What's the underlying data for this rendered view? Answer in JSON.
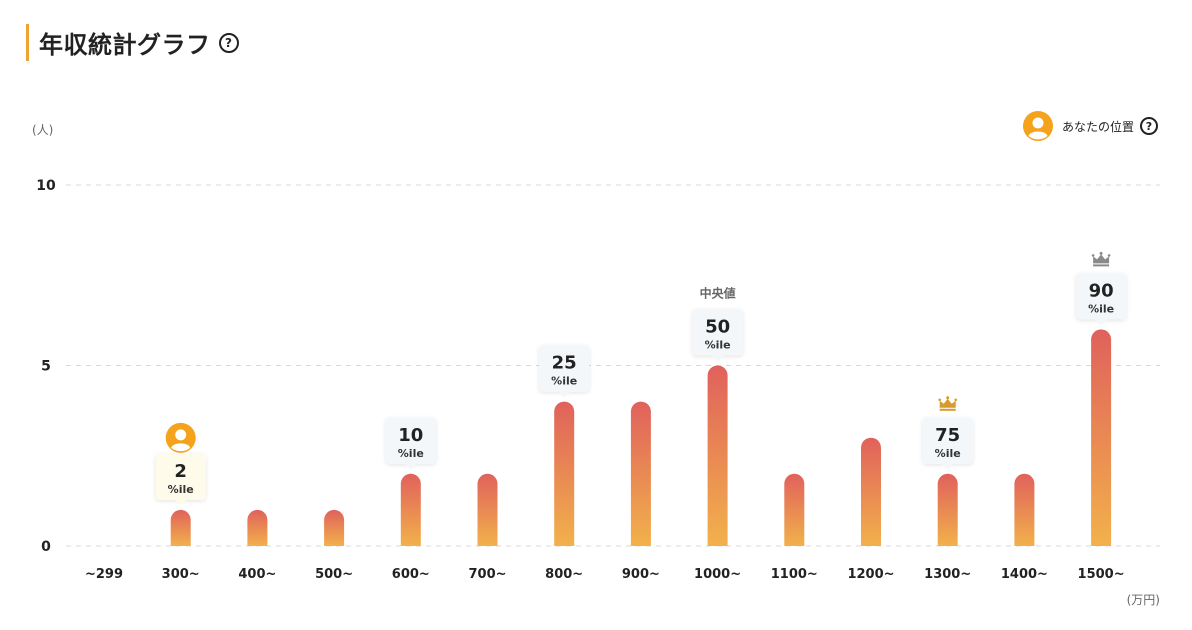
{
  "header": {
    "title": "年収統計グラフ",
    "help_icon": "question-circle-icon"
  },
  "legend": {
    "label": "あなたの位置",
    "icon": "user-avatar-icon",
    "help_icon": "question-circle-icon"
  },
  "colors": {
    "accent": "#f0a233",
    "bar_top": "#e0615c",
    "bar_bottom": "#f2b14b",
    "avatar": "#f5a21d",
    "crown_gold": "#d89a2b",
    "crown_gray": "#8a8a8a"
  },
  "chart_data": {
    "type": "bar",
    "ylabel": "(人)",
    "xunit": "(万円)",
    "ylim": [
      0,
      10
    ],
    "yticks": [
      0,
      5,
      10
    ],
    "grid": true,
    "categories": [
      "~299",
      "300~",
      "400~",
      "500~",
      "600~",
      "700~",
      "800~",
      "900~",
      "1000~",
      "1100~",
      "1200~",
      "1300~",
      "1400~",
      "1500~"
    ],
    "values": [
      0,
      1,
      1,
      1,
      2,
      2,
      4,
      4,
      5,
      2,
      3,
      2,
      2,
      6
    ],
    "percentile_markers": [
      {
        "category": "300~",
        "value": "2",
        "unit": "%ile",
        "user_position": true
      },
      {
        "category": "600~",
        "value": "10",
        "unit": "%ile"
      },
      {
        "category": "800~",
        "value": "25",
        "unit": "%ile"
      },
      {
        "category": "1000~",
        "value": "50",
        "unit": "%ile",
        "note": "中央値"
      },
      {
        "category": "1300~",
        "value": "75",
        "unit": "%ile",
        "icon": "crown-gold-icon"
      },
      {
        "category": "1500~",
        "value": "90",
        "unit": "%ile",
        "icon": "crown-gray-icon"
      }
    ]
  }
}
